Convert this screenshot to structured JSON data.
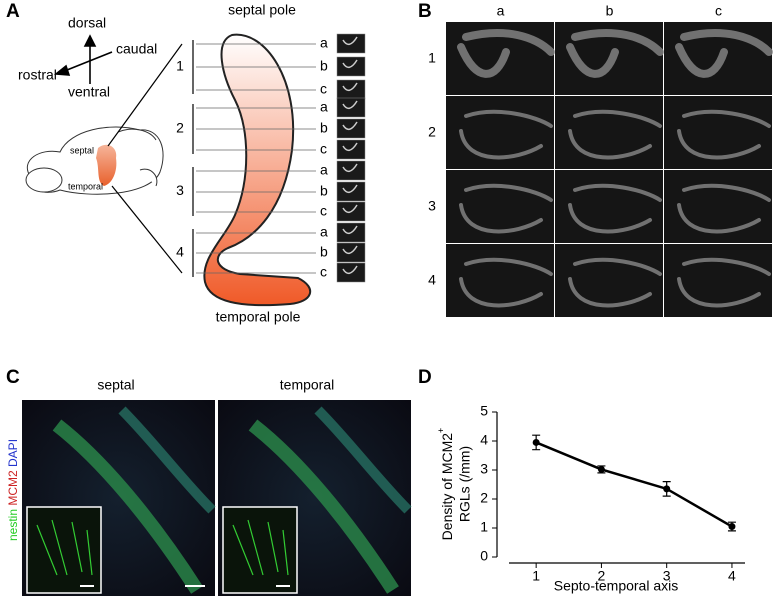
{
  "panel_a": {
    "label": "A",
    "orientation": {
      "dorsal": "dorsal",
      "caudal": "caudal",
      "rostral": "rostral",
      "ventral": "ventral"
    },
    "brain_labels": {
      "septal": "septal",
      "temporal": "temporal"
    },
    "septal_pole": "septal pole",
    "temporal_pole": "temporal pole",
    "levels": [
      {
        "label": "1",
        "sections": [
          "a",
          "b",
          "c"
        ]
      },
      {
        "label": "2",
        "sections": [
          "a",
          "b",
          "c"
        ]
      },
      {
        "label": "3",
        "sections": [
          "a",
          "b",
          "c"
        ]
      },
      {
        "label": "4",
        "sections": [
          "a",
          "b",
          "c"
        ]
      }
    ]
  },
  "panel_b": {
    "label": "B",
    "columns": [
      "a",
      "b",
      "c"
    ],
    "rows": [
      "1",
      "2",
      "3",
      "4"
    ]
  },
  "panel_c": {
    "label": "C",
    "columns": [
      "septal",
      "temporal"
    ],
    "stain": [
      "nestin",
      "MCM2",
      "DAPI"
    ]
  },
  "chart_data": {
    "type": "line",
    "panel_label": "D",
    "y_label": {
      "line1": "Density of MCM2",
      "superscript": "+",
      "line2": "RGLs (/mm)"
    },
    "x_label": "Septo-temporal axis",
    "x": [
      1,
      2,
      3,
      4
    ],
    "values": [
      3.95,
      3.02,
      2.35,
      1.05
    ],
    "errors": [
      0.25,
      0.12,
      0.25,
      0.15
    ],
    "color": "#000000",
    "xlim": [
      0.4,
      4.2
    ],
    "xticks": [
      1,
      2,
      3,
      4
    ],
    "ylim": [
      0,
      5
    ],
    "yticks": [
      0,
      1,
      2,
      3,
      4,
      5
    ]
  }
}
